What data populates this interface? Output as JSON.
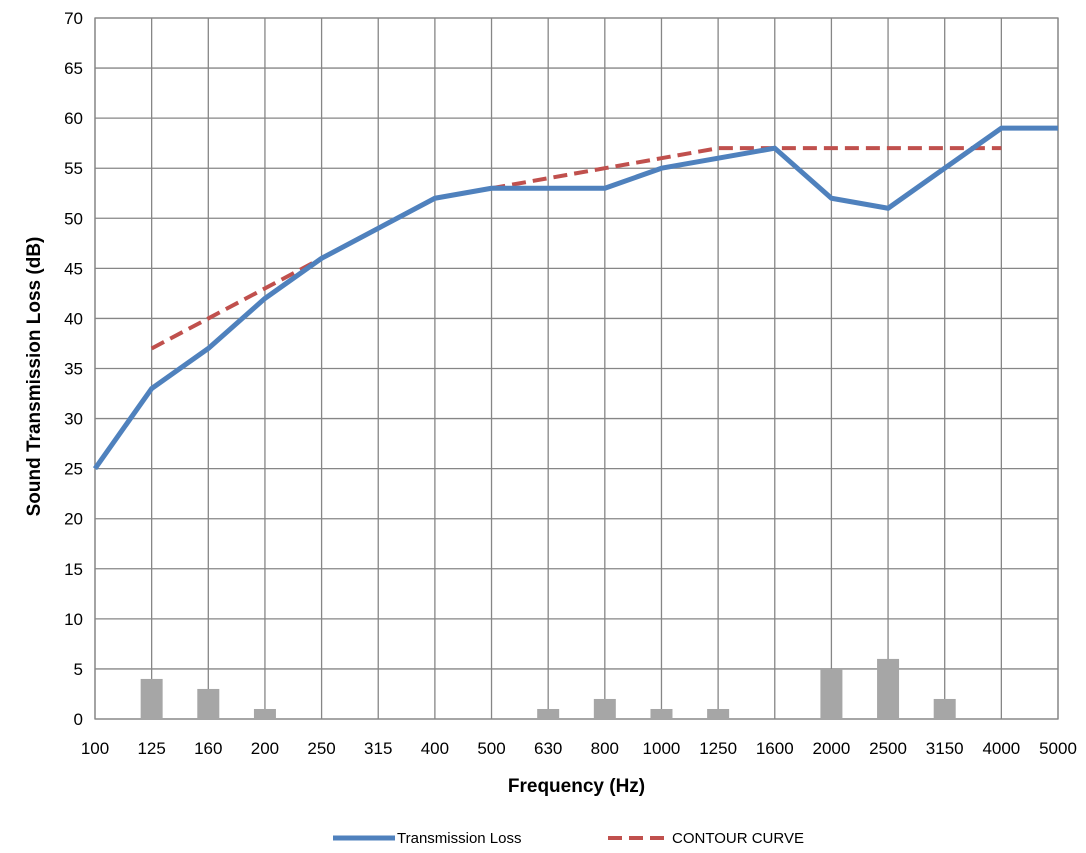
{
  "chart_data": {
    "type": "line",
    "title": "",
    "xlabel": "Frequency (Hz)",
    "ylabel": "Sound Transmission Loss (dB)",
    "ylim": [
      0,
      70
    ],
    "y_ticks": [
      0,
      5,
      10,
      15,
      20,
      25,
      30,
      35,
      40,
      45,
      50,
      55,
      60,
      65,
      70
    ],
    "grid": true,
    "legend_position": "bottom",
    "categories": [
      "100",
      "125",
      "160",
      "200",
      "250",
      "315",
      "400",
      "500",
      "630",
      "800",
      "1000",
      "1250",
      "1600",
      "2000",
      "2500",
      "3150",
      "4000",
      "5000"
    ],
    "series": [
      {
        "name": "Transmission Loss",
        "kind": "line",
        "style": "solid",
        "color": "#4f81bd",
        "values": [
          25,
          33,
          37,
          42,
          46,
          49,
          52,
          53,
          53,
          53,
          55,
          56,
          57,
          52,
          51,
          55,
          59,
          59
        ]
      },
      {
        "name": "CONTOUR CURVE",
        "kind": "line",
        "style": "dashed",
        "color": "#c0504d",
        "values": [
          null,
          37,
          40,
          43,
          46,
          49,
          52,
          53,
          54,
          55,
          56,
          57,
          57,
          57,
          57,
          57,
          57,
          null
        ]
      },
      {
        "name": "",
        "kind": "bar",
        "color": "#a6a6a6",
        "values": [
          null,
          4,
          3,
          1,
          null,
          null,
          null,
          null,
          1,
          2,
          1,
          1,
          null,
          5,
          6,
          2,
          null,
          null
        ]
      }
    ]
  }
}
